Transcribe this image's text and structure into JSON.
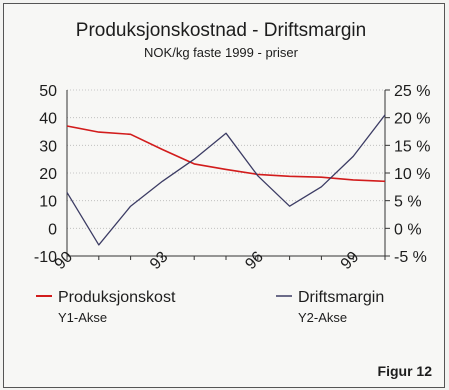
{
  "chart_data": {
    "type": "line",
    "title": "Produksjonskostnad  -  Driftsmargin",
    "subtitle": "NOK/kg faste 1999 - priser",
    "x": [
      90,
      91,
      92,
      93,
      94,
      95,
      96,
      97,
      98,
      99,
      100
    ],
    "x_tick_labels": [
      "90",
      "93",
      "96",
      "99"
    ],
    "y1_ticks": [
      "-10",
      "0",
      "10",
      "20",
      "30",
      "40",
      "50"
    ],
    "y2_ticks": [
      "-5 %",
      "0 %",
      "5 %",
      "10 %",
      "15 %",
      "20 %",
      "25 %"
    ],
    "ylim": [
      -10,
      50
    ],
    "y2lim": [
      -5,
      25
    ],
    "grid": "horizontal",
    "series": [
      {
        "name": "Produksjonskost",
        "axis_label": "Y1-Akse",
        "axis": "y1",
        "color": "#d21c1c",
        "values": [
          37,
          34.8,
          34,
          28.5,
          23.3,
          21.3,
          19.5,
          18.8,
          18.5,
          17.5,
          17
        ]
      },
      {
        "name": "Driftsmargin",
        "axis_label": "Y2-Akse",
        "axis": "y2",
        "color": "#3c3c64",
        "values": [
          6.5,
          -3,
          4,
          8.5,
          12.5,
          17.2,
          9.5,
          4,
          7.5,
          13,
          20.5
        ]
      }
    ],
    "legend": "bottom"
  },
  "figure_label": "Figur 12"
}
